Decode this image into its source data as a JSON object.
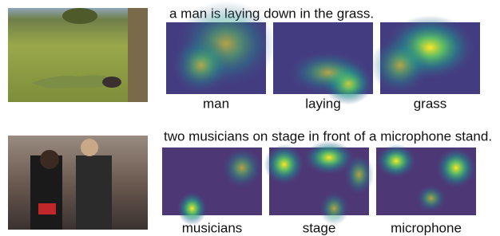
{
  "rows": [
    {
      "caption": "a man is laying down in the grass.",
      "words": [
        "man",
        "laying",
        "grass"
      ]
    },
    {
      "caption": "two musicians on stage in front of a microphone stand.",
      "words": [
        "musicians",
        "stage",
        "microphone"
      ]
    }
  ]
}
